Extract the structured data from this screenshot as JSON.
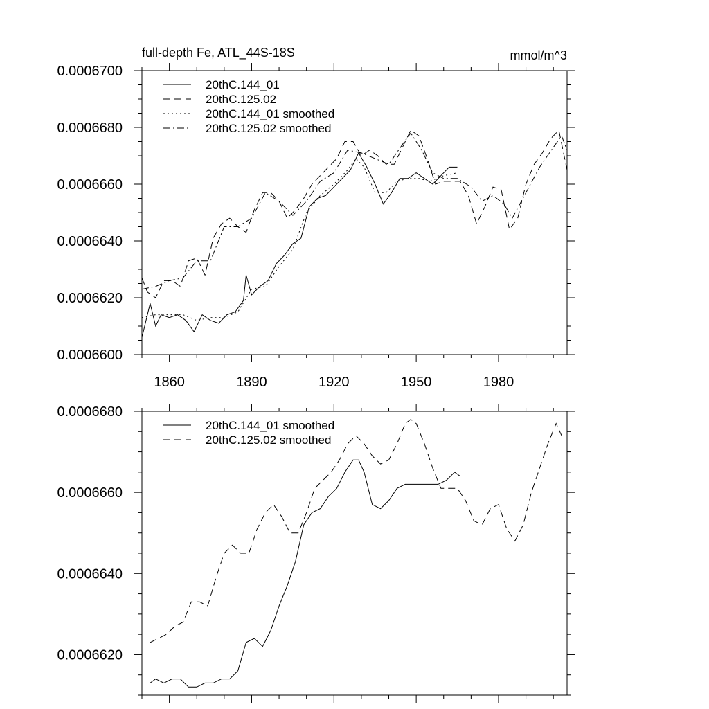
{
  "chart_data": [
    {
      "type": "line",
      "title": "full-depth Fe, ATL_44S-18S",
      "units": "mmol/m^3",
      "xlim": [
        1850,
        2005
      ],
      "ylim": [
        0.00066,
        0.00067
      ],
      "xticks": [
        1860,
        1890,
        1920,
        1950,
        1980
      ],
      "yticks": [
        0.00066,
        0.000662,
        0.000664,
        0.000666,
        0.000668,
        0.00067
      ],
      "ytick_labels": [
        "0.0006600",
        "0.0006620",
        "0.0006640",
        "0.0006660",
        "0.0006680",
        "0.0006700"
      ],
      "series": [
        {
          "name": "20thC.144_01",
          "style": "solid",
          "x": [
            1850,
            1853,
            1855,
            1857,
            1860,
            1863,
            1866,
            1869,
            1872,
            1875,
            1878,
            1881,
            1884,
            1887,
            1888,
            1890,
            1893,
            1896,
            1899,
            1902,
            1905,
            1908,
            1911,
            1914,
            1917,
            1920,
            1923,
            1926,
            1929,
            1932,
            1935,
            1938,
            1941,
            1944,
            1947,
            1950,
            1953,
            1956,
            1959,
            1962,
            1965
          ],
          "values": [
            0.0006606,
            0.0006618,
            0.000661,
            0.0006614,
            0.0006613,
            0.0006614,
            0.0006612,
            0.0006608,
            0.0006614,
            0.0006612,
            0.0006611,
            0.0006614,
            0.0006615,
            0.0006619,
            0.0006628,
            0.0006621,
            0.0006624,
            0.0006626,
            0.0006632,
            0.0006635,
            0.0006639,
            0.0006641,
            0.0006652,
            0.0006655,
            0.0006656,
            0.0006659,
            0.0006662,
            0.0006665,
            0.0006671,
            0.0006666,
            0.000666,
            0.0006653,
            0.0006657,
            0.0006662,
            0.0006662,
            0.0006664,
            0.0006662,
            0.000666,
            0.0006663,
            0.0006666,
            0.0006666
          ]
        },
        {
          "name": "20thC.125.02",
          "style": "dashed",
          "x": [
            1850,
            1852,
            1855,
            1858,
            1861,
            1864,
            1867,
            1870,
            1873,
            1876,
            1879,
            1882,
            1885,
            1888,
            1891,
            1894,
            1897,
            1900,
            1903,
            1906,
            1909,
            1912,
            1915,
            1918,
            1921,
            1924,
            1927,
            1930,
            1933,
            1936,
            1939,
            1942,
            1945,
            1948,
            1951,
            1954,
            1957,
            1960,
            1963,
            1966,
            1969,
            1972,
            1975,
            1978,
            1981,
            1984,
            1987,
            1990,
            1993,
            1996,
            1999,
            2002,
            2005
          ],
          "values": [
            0.0006627,
            0.0006622,
            0.000662,
            0.0006626,
            0.0006626,
            0.0006624,
            0.0006633,
            0.0006634,
            0.0006628,
            0.0006641,
            0.0006646,
            0.0006648,
            0.0006645,
            0.0006643,
            0.0006651,
            0.0006657,
            0.0006657,
            0.0006654,
            0.0006648,
            0.0006651,
            0.0006655,
            0.000666,
            0.0006663,
            0.0006666,
            0.0006669,
            0.0006675,
            0.0006675,
            0.000667,
            0.0006672,
            0.000667,
            0.0006667,
            0.0006667,
            0.0006673,
            0.0006679,
            0.0006677,
            0.0006669,
            0.000666,
            0.0006661,
            0.0006661,
            0.0006661,
            0.0006656,
            0.0006646,
            0.0006652,
            0.0006659,
            0.0006658,
            0.0006644,
            0.0006648,
            0.000666,
            0.0006667,
            0.0006671,
            0.0006676,
            0.0006679,
            0.0006665
          ]
        },
        {
          "name": "20thC.144_01 smoothed",
          "style": "dotted",
          "x": [
            1850,
            1855,
            1860,
            1865,
            1870,
            1875,
            1880,
            1885,
            1890,
            1895,
            1900,
            1905,
            1910,
            1915,
            1920,
            1925,
            1928,
            1931,
            1935,
            1939,
            1943,
            1947,
            1951,
            1955,
            1960,
            1965
          ],
          "values": [
            0.0006613,
            0.0006614,
            0.0006614,
            0.0006614,
            0.0006612,
            0.0006613,
            0.0006613,
            0.0006615,
            0.0006623,
            0.0006624,
            0.0006631,
            0.0006637,
            0.000665,
            0.0006656,
            0.000666,
            0.0006665,
            0.0006669,
            0.0006666,
            0.0006657,
            0.0006657,
            0.0006661,
            0.0006662,
            0.0006662,
            0.0006661,
            0.0006663,
            0.0006664
          ]
        },
        {
          "name": "20thC.125.02 smoothed",
          "style": "dashdot",
          "x": [
            1850,
            1855,
            1860,
            1865,
            1870,
            1875,
            1880,
            1885,
            1890,
            1895,
            1900,
            1905,
            1910,
            1915,
            1920,
            1925,
            1930,
            1935,
            1940,
            1945,
            1948,
            1952,
            1956,
            1960,
            1965,
            1970,
            1974,
            1978,
            1982,
            1985,
            1990,
            1995,
            2000,
            2003,
            2005
          ],
          "values": [
            0.0006623,
            0.0006624,
            0.0006626,
            0.0006627,
            0.0006633,
            0.0006633,
            0.0006645,
            0.0006645,
            0.0006648,
            0.0006657,
            0.0006654,
            0.0006649,
            0.0006654,
            0.0006661,
            0.0006664,
            0.0006672,
            0.0006671,
            0.0006669,
            0.0006667,
            0.0006674,
            0.0006678,
            0.0006672,
            0.0006664,
            0.0006662,
            0.0006662,
            0.0006659,
            0.0006654,
            0.0006656,
            0.0006653,
            0.0006648,
            0.0006657,
            0.0006666,
            0.0006673,
            0.0006677,
            0.0006672
          ]
        }
      ]
    },
    {
      "type": "line",
      "title": "",
      "xlim": [
        1850,
        2005
      ],
      "ylim": [
        0.000661,
        0.000668
      ],
      "xticks": [
        1860,
        1890,
        1920,
        1950,
        1980
      ],
      "yticks": [
        0.000662,
        0.000664,
        0.000666,
        0.000668
      ],
      "ytick_labels": [
        "0.0006620",
        "0.0006640",
        "0.0006660",
        "0.0006680"
      ],
      "series": [
        {
          "name": "20thC.144_01 smoothed",
          "style": "solid",
          "x": [
            1853,
            1855,
            1858,
            1861,
            1864,
            1867,
            1870,
            1873,
            1876,
            1879,
            1882,
            1885,
            1888,
            1891,
            1894,
            1897,
            1900,
            1903,
            1906,
            1909,
            1912,
            1915,
            1918,
            1921,
            1924,
            1927,
            1929,
            1931,
            1934,
            1937,
            1940,
            1943,
            1946,
            1949,
            1952,
            1955,
            1958,
            1961,
            1964,
            1966
          ],
          "values": [
            0.0006613,
            0.0006614,
            0.0006613,
            0.0006614,
            0.0006614,
            0.0006612,
            0.0006612,
            0.0006613,
            0.0006613,
            0.0006614,
            0.0006614,
            0.0006616,
            0.0006623,
            0.0006624,
            0.0006622,
            0.0006626,
            0.0006632,
            0.0006637,
            0.0006643,
            0.0006652,
            0.0006655,
            0.0006656,
            0.0006659,
            0.0006661,
            0.0006665,
            0.0006668,
            0.0006668,
            0.0006665,
            0.0006657,
            0.0006656,
            0.0006658,
            0.0006661,
            0.0006662,
            0.0006662,
            0.0006662,
            0.0006662,
            0.0006662,
            0.0006663,
            0.0006665,
            0.0006664
          ]
        },
        {
          "name": "20thC.125.02 smoothed",
          "style": "dashed",
          "x": [
            1853,
            1856,
            1859,
            1862,
            1865,
            1868,
            1871,
            1874,
            1877,
            1880,
            1883,
            1886,
            1889,
            1892,
            1895,
            1898,
            1901,
            1904,
            1907,
            1910,
            1913,
            1916,
            1919,
            1922,
            1925,
            1928,
            1931,
            1934,
            1937,
            1940,
            1943,
            1946,
            1948,
            1950,
            1953,
            1956,
            1959,
            1962,
            1965,
            1968,
            1971,
            1974,
            1977,
            1980,
            1983,
            1986,
            1989,
            1992,
            1995,
            1998,
            2001,
            2003
          ],
          "values": [
            0.0006623,
            0.0006624,
            0.0006625,
            0.0006627,
            0.0006628,
            0.0006633,
            0.0006633,
            0.0006632,
            0.0006639,
            0.0006645,
            0.0006647,
            0.0006645,
            0.0006645,
            0.0006651,
            0.0006655,
            0.0006657,
            0.0006654,
            0.000665,
            0.000665,
            0.0006655,
            0.0006661,
            0.0006663,
            0.0006665,
            0.0006668,
            0.0006672,
            0.0006674,
            0.0006672,
            0.0006669,
            0.0006667,
            0.0006668,
            0.0006672,
            0.0006677,
            0.0006678,
            0.0006677,
            0.0006672,
            0.0006666,
            0.0006661,
            0.0006661,
            0.0006661,
            0.0006658,
            0.0006653,
            0.0006652,
            0.0006656,
            0.0006657,
            0.0006651,
            0.0006648,
            0.0006652,
            0.000666,
            0.0006666,
            0.0006672,
            0.0006677,
            0.0006674
          ]
        }
      ]
    }
  ]
}
